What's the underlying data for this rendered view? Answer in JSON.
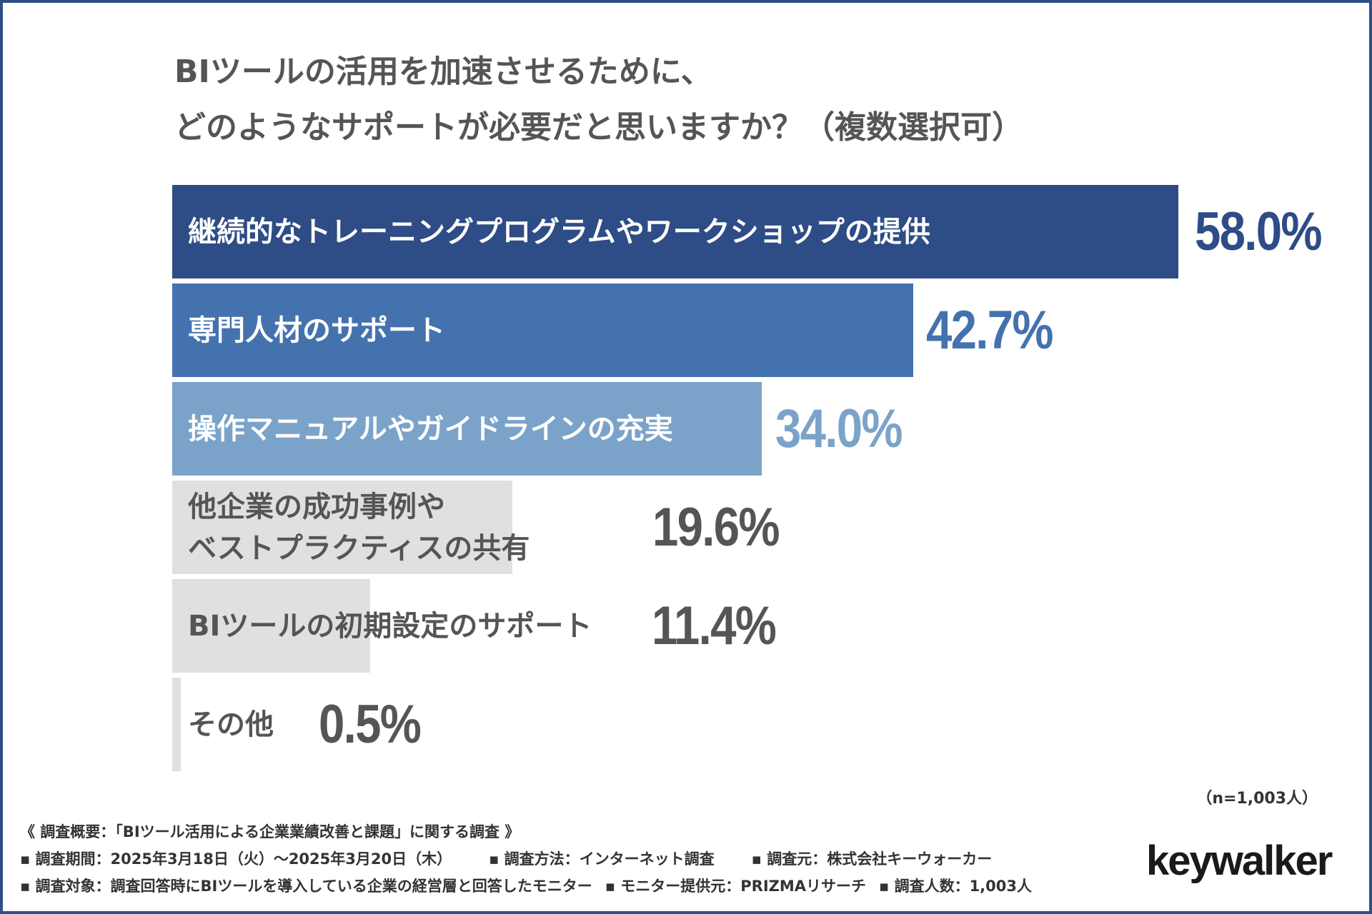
{
  "chart_data": {
    "type": "bar",
    "orientation": "horizontal",
    "title_lines": [
      "BIツールの活用を加速させるために、",
      "どのようなサポートが必要だと思いますか？（複数選択可）"
    ],
    "categories": [
      "継続的なトレーニングプログラムやワークショップの提供",
      "専門人材のサポート",
      "操作マニュアルやガイドラインの充実",
      "他企業の成功事例や\nベストプラクティスの共有",
      "BIツールの初期設定のサポート",
      "その他"
    ],
    "values": [
      58.0,
      42.7,
      34.0,
      19.6,
      11.4,
      0.5
    ],
    "value_labels": [
      "58.0%",
      "42.7%",
      "34.0%",
      "19.6%",
      "11.4%",
      "0.5%"
    ],
    "bar_colors": [
      "#2e4c85",
      "#4472ae",
      "#7ba3c9",
      "#e0e0e0",
      "#e0e0e0",
      "#e0e0e0"
    ],
    "value_colors": [
      "#2e4c85",
      "#4472ae",
      "#7ba3c9",
      "#555555",
      "#555555",
      "#555555"
    ],
    "label_colors": [
      "#ffffff",
      "#ffffff",
      "#ffffff",
      "#555555",
      "#555555",
      "#555555"
    ],
    "xlim": [
      0,
      58.0
    ],
    "grid": false,
    "legend": "none"
  },
  "sample_note": "（n=1,003人）",
  "footer": {
    "summary": "《 調査概要：「BIツール活用による企業業績改善と課題」に関する調査 》",
    "period": "▪ 調査期間：2025年3月18日（火）〜2025年3月20日（木）",
    "method": "▪ 調査方法：インターネット調査",
    "source": "▪ 調査元：株式会社キーウォーカー",
    "target": "▪ 調査対象：調査回答時にBIツールを導入している企業の経営層と回答したモニター",
    "provider": "▪ モニター提供元：PRIZMAリサーチ",
    "count": "▪ 調査人数：1,003人"
  },
  "logo_text": "keywalker",
  "colors": {
    "frame": "#2f4f8a"
  }
}
